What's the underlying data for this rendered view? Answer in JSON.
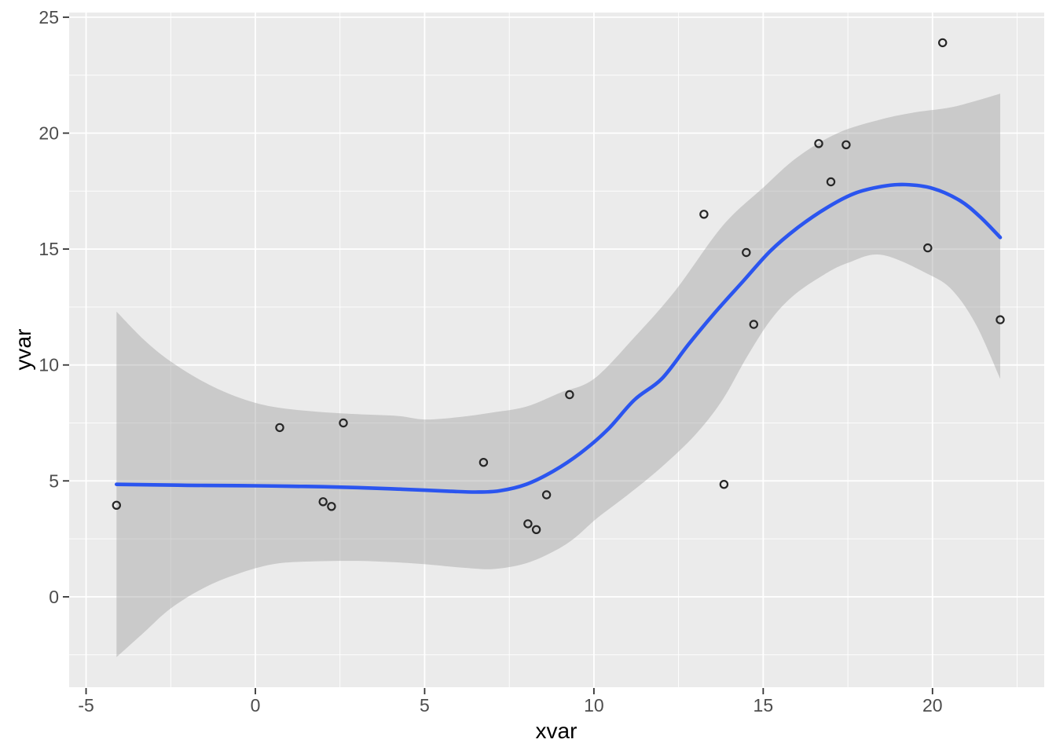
{
  "chart_data": {
    "type": "scatter",
    "title": "",
    "xlabel": "xvar",
    "ylabel": "yvar",
    "legend": "none",
    "grid": "on",
    "xlim": [
      -5.5,
      23.3
    ],
    "ylim": [
      -3.9,
      25.2
    ],
    "x_ticks": [
      -5,
      0,
      5,
      10,
      15,
      20
    ],
    "y_ticks": [
      0,
      5,
      10,
      15,
      20,
      25
    ],
    "x_minor_ticks": [
      -2.5,
      2.5,
      7.5,
      12.5,
      17.5,
      22.5
    ],
    "y_minor_ticks": [
      -2.5,
      2.5,
      7.5,
      12.5,
      17.5,
      22.5
    ],
    "colors": {
      "panel_background": "#EBEBEB",
      "grid": "#FFFFFF",
      "smooth_line": "#2B55EF",
      "band_fill": "rgba(153,153,153,0.40)",
      "point_stroke": "#262626",
      "tick_label": "#4D4D4D",
      "tick_mark": "#333333"
    },
    "points": [
      [
        -4.1,
        3.95
      ],
      [
        0.72,
        7.3
      ],
      [
        2.0,
        4.1
      ],
      [
        2.25,
        3.9
      ],
      [
        2.6,
        7.5
      ],
      [
        6.74,
        5.8
      ],
      [
        8.05,
        3.15
      ],
      [
        8.3,
        2.9
      ],
      [
        8.6,
        4.4
      ],
      [
        9.28,
        8.72
      ],
      [
        13.25,
        16.5
      ],
      [
        13.84,
        4.85
      ],
      [
        14.5,
        14.85
      ],
      [
        14.72,
        11.75
      ],
      [
        16.64,
        19.55
      ],
      [
        17.0,
        17.9
      ],
      [
        17.45,
        19.5
      ],
      [
        19.86,
        15.05
      ],
      [
        20.3,
        23.9
      ],
      [
        22.0,
        11.95
      ]
    ],
    "smooth_line": [
      [
        -4.1,
        4.85
      ],
      [
        -3,
        4.83
      ],
      [
        -2,
        4.81
      ],
      [
        -1,
        4.8
      ],
      [
        0,
        4.79
      ],
      [
        1,
        4.77
      ],
      [
        2,
        4.75
      ],
      [
        3,
        4.71
      ],
      [
        4,
        4.66
      ],
      [
        5,
        4.6
      ],
      [
        5.8,
        4.55
      ],
      [
        6.5,
        4.52
      ],
      [
        7.2,
        4.57
      ],
      [
        8,
        4.85
      ],
      [
        8.8,
        5.42
      ],
      [
        9.6,
        6.2
      ],
      [
        10.4,
        7.2
      ],
      [
        11.2,
        8.5
      ],
      [
        12,
        9.4
      ],
      [
        12.8,
        10.9
      ],
      [
        13.6,
        12.3
      ],
      [
        14.4,
        13.6
      ],
      [
        15.2,
        14.9
      ],
      [
        16,
        15.9
      ],
      [
        16.9,
        16.8
      ],
      [
        17.7,
        17.4
      ],
      [
        18.5,
        17.7
      ],
      [
        19.2,
        17.78
      ],
      [
        20,
        17.62
      ],
      [
        20.8,
        17.1
      ],
      [
        21.4,
        16.4
      ],
      [
        22,
        15.5
      ]
    ],
    "ci_upper": [
      [
        -4.1,
        12.3
      ],
      [
        -3.3,
        11.1
      ],
      [
        -2.5,
        10.15
      ],
      [
        -1.5,
        9.25
      ],
      [
        -0.5,
        8.6
      ],
      [
        0.5,
        8.2
      ],
      [
        1.7,
        8.0
      ],
      [
        3,
        7.88
      ],
      [
        4.2,
        7.8
      ],
      [
        5,
        7.65
      ],
      [
        6,
        7.75
      ],
      [
        7,
        7.95
      ],
      [
        8,
        8.2
      ],
      [
        9,
        8.8
      ],
      [
        10,
        9.4
      ],
      [
        11.2,
        11.2
      ],
      [
        12.4,
        13.2
      ],
      [
        13.8,
        16.0
      ],
      [
        15,
        17.65
      ],
      [
        16,
        18.95
      ],
      [
        17.2,
        20.0
      ],
      [
        18.5,
        20.6
      ],
      [
        19.5,
        20.9
      ],
      [
        20.5,
        21.1
      ],
      [
        21.3,
        21.4
      ],
      [
        22,
        21.7
      ]
    ],
    "ci_lower": [
      [
        -4.1,
        -2.6
      ],
      [
        -3.3,
        -1.55
      ],
      [
        -2.5,
        -0.5
      ],
      [
        -1.5,
        0.4
      ],
      [
        -0.5,
        1.0
      ],
      [
        0.5,
        1.4
      ],
      [
        1.5,
        1.52
      ],
      [
        2.9,
        1.55
      ],
      [
        4,
        1.5
      ],
      [
        5.2,
        1.38
      ],
      [
        6.2,
        1.25
      ],
      [
        7.05,
        1.2
      ],
      [
        8,
        1.45
      ],
      [
        8.8,
        1.95
      ],
      [
        9.4,
        2.5
      ],
      [
        10.1,
        3.4
      ],
      [
        11,
        4.4
      ],
      [
        12,
        5.6
      ],
      [
        13,
        7.0
      ],
      [
        13.8,
        8.5
      ],
      [
        14.5,
        10.3
      ],
      [
        15.2,
        11.9
      ],
      [
        15.9,
        13.0
      ],
      [
        16.8,
        13.9
      ],
      [
        17.5,
        14.4
      ],
      [
        18.5,
        14.75
      ],
      [
        19.9,
        13.9
      ],
      [
        20.6,
        13.2
      ],
      [
        21.3,
        11.7
      ],
      [
        22,
        9.4
      ]
    ]
  }
}
